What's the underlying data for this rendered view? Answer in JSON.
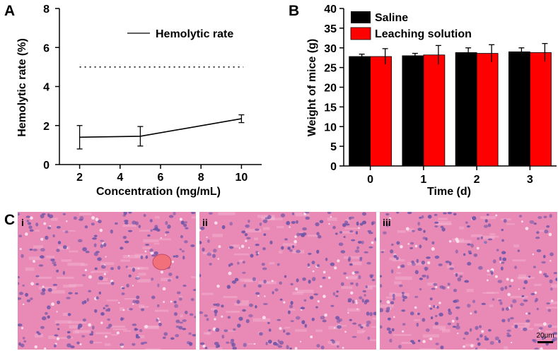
{
  "panels": {
    "a_label": "A",
    "b_label": "B",
    "c_label": "C"
  },
  "chart_data": [
    {
      "id": "A",
      "type": "line",
      "title": "",
      "xlabel": "Concentration (mg/mL)",
      "ylabel": "Hemolytic rate (%)",
      "xlim": [
        1,
        11
      ],
      "ylim": [
        0,
        8
      ],
      "xticks": [
        2,
        4,
        6,
        8,
        10
      ],
      "yticks": [
        0,
        2,
        4,
        6,
        8
      ],
      "series": [
        {
          "name": "Hemolytic rate",
          "x": [
            2,
            5,
            10
          ],
          "y": [
            1.4,
            1.45,
            2.35
          ],
          "err": [
            0.6,
            0.5,
            0.2
          ],
          "color": "#000000"
        }
      ],
      "reference_line": {
        "y": 5,
        "style": "dotted"
      },
      "legend": "top-right"
    },
    {
      "id": "B",
      "type": "bar",
      "title": "",
      "xlabel": "Time (d)",
      "ylabel": "Weight of mice (g)",
      "categories": [
        "0",
        "1",
        "2",
        "3"
      ],
      "ylim": [
        0,
        40
      ],
      "yticks": [
        0,
        5,
        10,
        15,
        20,
        25,
        30,
        35,
        40
      ],
      "series": [
        {
          "name": "Saline",
          "color": "#000000",
          "values": [
            27.8,
            28.0,
            28.8,
            29.0
          ],
          "err": [
            0.6,
            0.6,
            1.2,
            1.0
          ]
        },
        {
          "name": "Leaching solution",
          "color": "#ff0000",
          "values": [
            27.8,
            28.2,
            28.6,
            28.8
          ],
          "err": [
            2.0,
            2.4,
            2.2,
            2.3
          ]
        }
      ],
      "legend": "top-left"
    }
  ],
  "micrographs": {
    "labels": [
      "i",
      "ii",
      "iii"
    ],
    "scale_bar": "20μm",
    "tissue_color": "#e98ab6",
    "nucleus_color": "#6f55a8"
  }
}
